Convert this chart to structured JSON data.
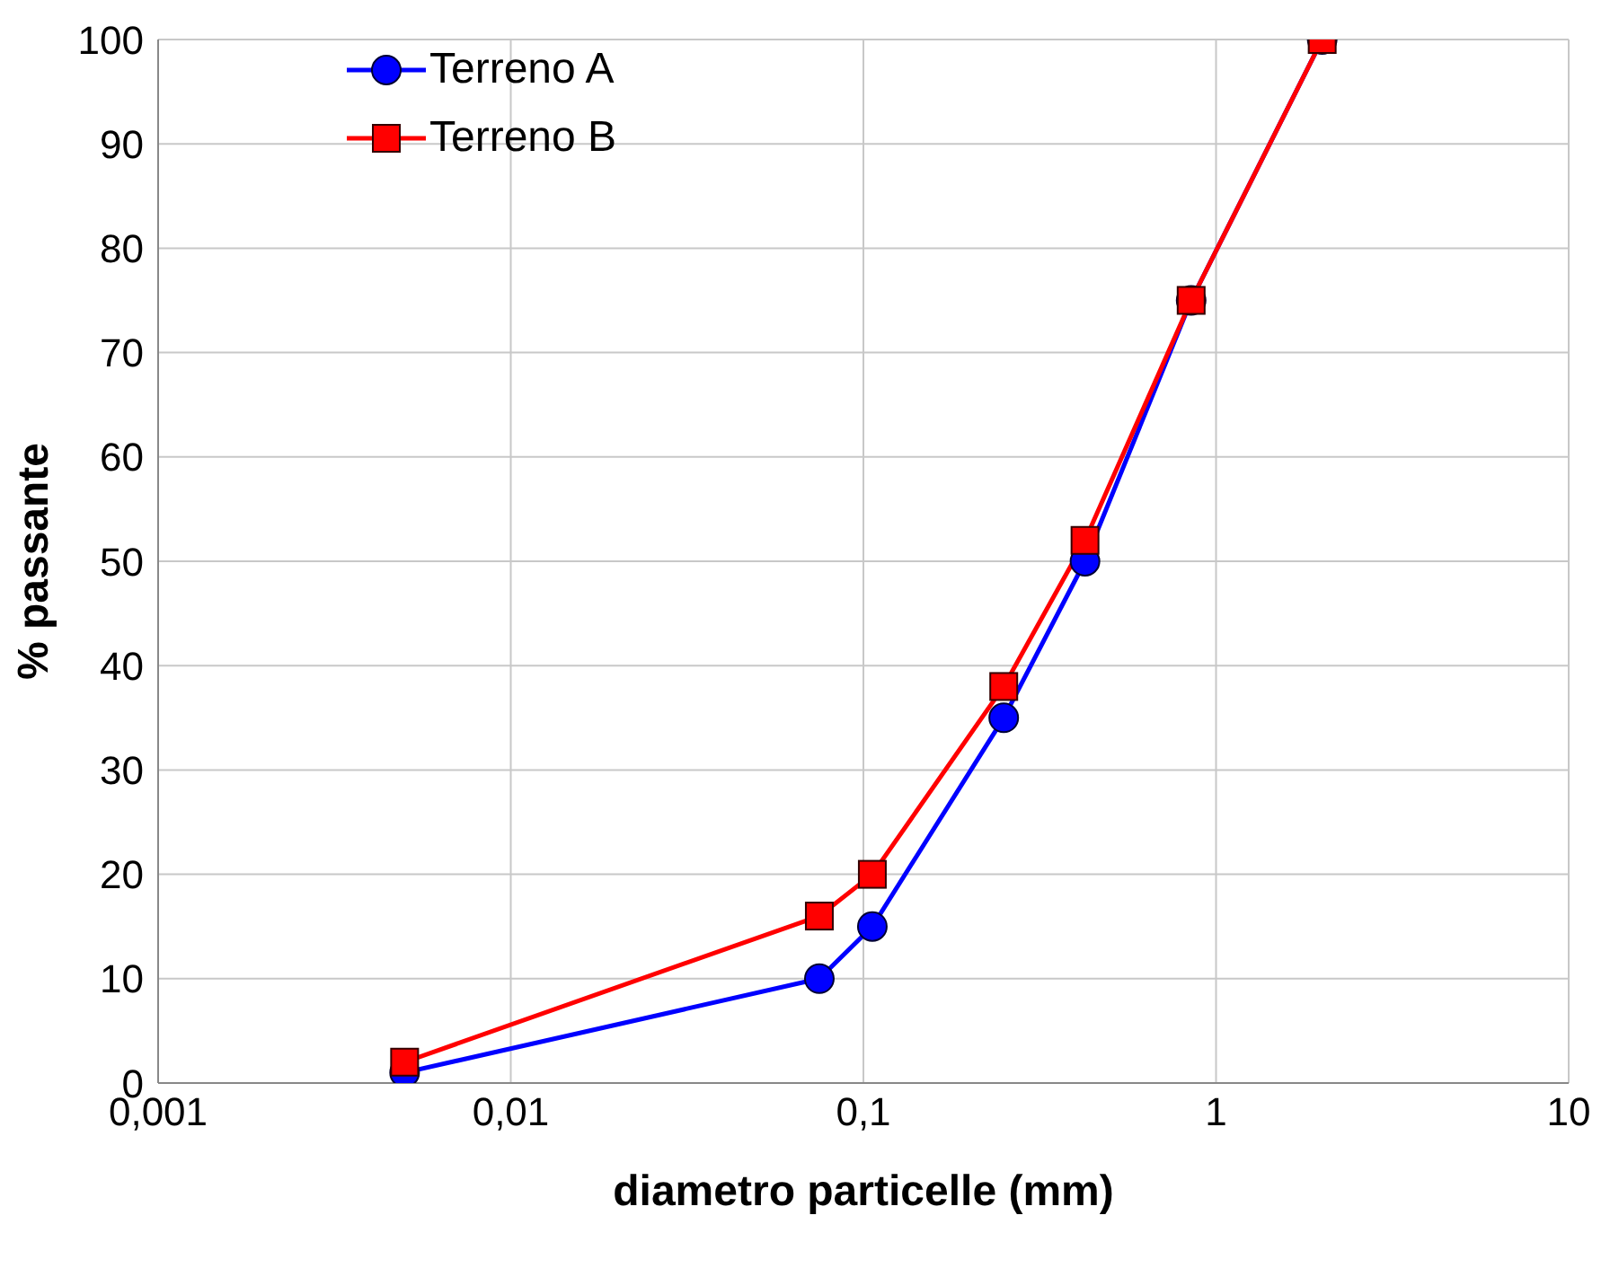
{
  "chart_data": {
    "type": "line",
    "xlabel": "diametro particelle (mm)",
    "ylabel": "% passante",
    "log": "x",
    "xlim": [
      0.001,
      10
    ],
    "xticks": [
      {
        "value": 0.001,
        "label": "0,001"
      },
      {
        "value": 0.01,
        "label": "0,01"
      },
      {
        "value": 0.1,
        "label": "0,1"
      },
      1,
      10
    ],
    "ylim": [
      0,
      100
    ],
    "yticks": [
      0,
      10,
      20,
      30,
      40,
      50,
      60,
      70,
      80,
      90,
      100
    ],
    "grid": true,
    "legend": "top left",
    "x": [
      0.005,
      0.075,
      0.106,
      0.25,
      0.425,
      0.85,
      2
    ],
    "series": [
      {
        "name": "Terreno A",
        "color": "#0000ff",
        "marker": "circle",
        "values": [
          1,
          10,
          15,
          35,
          50,
          75,
          100
        ]
      },
      {
        "name": "Terreno B",
        "color": "#ff0000",
        "marker": "square",
        "values": [
          2,
          16,
          20,
          38,
          52,
          75,
          100
        ]
      }
    ]
  }
}
